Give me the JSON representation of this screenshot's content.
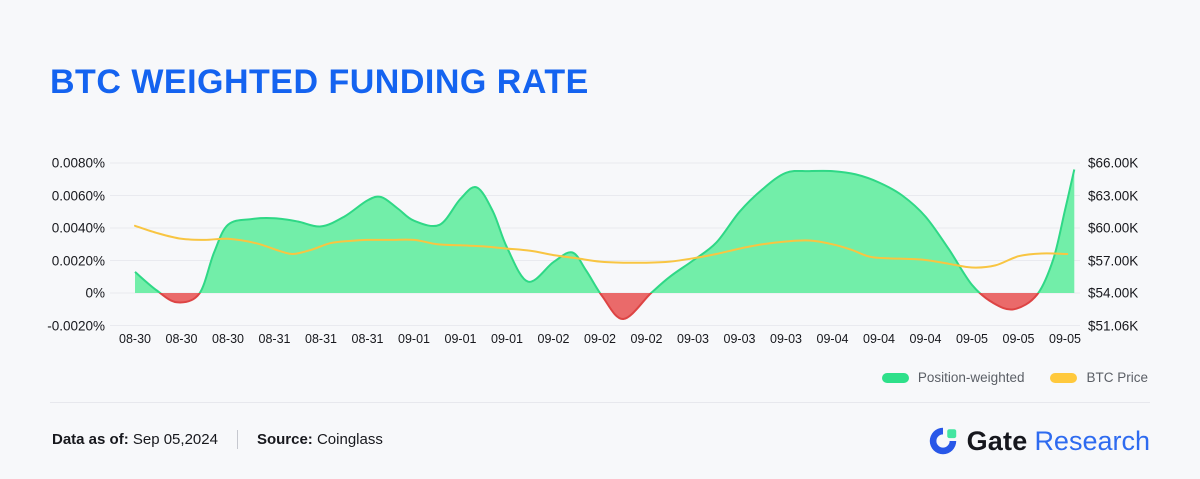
{
  "title": "BTC WEIGHTED FUNDING RATE",
  "colors": {
    "title_blue": "#1463f0",
    "background": "#f7f8fa",
    "grid": "#e9eaef",
    "area_positive_fill": "#72eea9",
    "area_positive_line": "#2fd886",
    "area_negative_fill": "#ea6a6a",
    "area_negative_line": "#dd4444",
    "price_line": "#f8c542"
  },
  "chart_data": {
    "type": "area",
    "title": "BTC WEIGHTED FUNDING RATE",
    "grid": true,
    "x_labels": [
      "08-30",
      "08-30",
      "08-30",
      "08-31",
      "08-31",
      "08-31",
      "09-01",
      "09-01",
      "09-01",
      "09-02",
      "09-02",
      "09-02",
      "09-03",
      "09-03",
      "09-03",
      "09-04",
      "09-04",
      "09-04",
      "09-05",
      "09-05",
      "09-05"
    ],
    "left_axis": {
      "ticks": [
        "0.0080%",
        "0.0060%",
        "0.0040%",
        "0.0020%",
        "0%",
        "-0.0020%"
      ],
      "values": [
        0.008,
        0.006,
        0.004,
        0.002,
        0,
        -0.002
      ],
      "unit": "%"
    },
    "right_axis": {
      "ticks": [
        "$66.00K",
        "$63.00K",
        "$60.00K",
        "$57.00K",
        "$54.00K",
        "$51.06K"
      ],
      "values": [
        66,
        63,
        60,
        57,
        54,
        51.06
      ],
      "unit": "$K"
    },
    "series": [
      {
        "name": "Position-weighted",
        "kind": "area",
        "axis": "left",
        "fill_positive": "#72eea9",
        "line_positive": "#2fd886",
        "fill_negative": "#ea6a6a",
        "line_negative": "#dd4444",
        "points": [
          [
            0,
            0.0013
          ],
          [
            0.45,
            0.0002
          ],
          [
            0.9,
            -0.00057
          ],
          [
            1.38,
            -5e-05
          ],
          [
            1.7,
            0.0025
          ],
          [
            2,
            0.0042
          ],
          [
            2.5,
            0.00455
          ],
          [
            3,
            0.0046
          ],
          [
            3.5,
            0.0044
          ],
          [
            4,
            0.0041
          ],
          [
            4.5,
            0.0047
          ],
          [
            5,
            0.0057
          ],
          [
            5.3,
            0.0059
          ],
          [
            5.65,
            0.0052
          ],
          [
            6,
            0.00445
          ],
          [
            6.55,
            0.0042
          ],
          [
            7,
            0.0058
          ],
          [
            7.35,
            0.0065
          ],
          [
            7.7,
            0.005
          ],
          [
            8,
            0.0028
          ],
          [
            8.45,
            0.0007
          ],
          [
            9,
            0.0019
          ],
          [
            9.4,
            0.0025
          ],
          [
            9.7,
            0.0014
          ],
          [
            10.05,
            -0.0002
          ],
          [
            10.5,
            -0.0016
          ],
          [
            11.1,
            0
          ],
          [
            11.5,
            0.001
          ],
          [
            12,
            0.002
          ],
          [
            12.5,
            0.0031
          ],
          [
            13,
            0.005
          ],
          [
            13.5,
            0.0064
          ],
          [
            14,
            0.0074
          ],
          [
            14.5,
            0.0075
          ],
          [
            15,
            0.0075
          ],
          [
            15.5,
            0.0073
          ],
          [
            16,
            0.0068
          ],
          [
            16.5,
            0.006
          ],
          [
            17,
            0.0047
          ],
          [
            17.5,
            0.0027
          ],
          [
            18,
            0.0005
          ],
          [
            18.45,
            -0.0006
          ],
          [
            18.9,
            -0.001
          ],
          [
            19.4,
            -0.0001
          ],
          [
            19.75,
            0.0021
          ],
          [
            20,
            0.0051
          ],
          [
            20.2,
            0.0076
          ]
        ]
      },
      {
        "name": "BTC Price",
        "kind": "line",
        "axis": "right",
        "color": "#f8c542",
        "points": [
          [
            0,
            60.2
          ],
          [
            0.5,
            59.5
          ],
          [
            1,
            59
          ],
          [
            1.5,
            58.9
          ],
          [
            2,
            59
          ],
          [
            2.6,
            58.6
          ],
          [
            3.1,
            57.9
          ],
          [
            3.4,
            57.6
          ],
          [
            3.8,
            58
          ],
          [
            4.2,
            58.6
          ],
          [
            4.6,
            58.8
          ],
          [
            5,
            58.9
          ],
          [
            5.5,
            58.9
          ],
          [
            6,
            58.9
          ],
          [
            6.5,
            58.5
          ],
          [
            7,
            58.4
          ],
          [
            7.5,
            58.3
          ],
          [
            8,
            58.1
          ],
          [
            8.5,
            57.9
          ],
          [
            9,
            57.5
          ],
          [
            9.5,
            57.2
          ],
          [
            10,
            56.9
          ],
          [
            10.5,
            56.8
          ],
          [
            11,
            56.8
          ],
          [
            11.5,
            56.9
          ],
          [
            12,
            57.2
          ],
          [
            12.5,
            57.6
          ],
          [
            13,
            58.1
          ],
          [
            13.5,
            58.5
          ],
          [
            14,
            58.75
          ],
          [
            14.5,
            58.85
          ],
          [
            15,
            58.5
          ],
          [
            15.4,
            58
          ],
          [
            15.8,
            57.35
          ],
          [
            16.2,
            57.2
          ],
          [
            16.6,
            57.15
          ],
          [
            17,
            57.05
          ],
          [
            17.5,
            56.7
          ],
          [
            18,
            56.35
          ],
          [
            18.5,
            56.55
          ],
          [
            19,
            57.4
          ],
          [
            19.5,
            57.65
          ],
          [
            20.05,
            57.6
          ]
        ]
      }
    ],
    "legend": [
      {
        "label": "Position-weighted",
        "color": "#2ee08a"
      },
      {
        "label": "BTC Price",
        "color": "#ffc93d"
      }
    ],
    "legend_position": "bottom-right"
  },
  "footer": {
    "data_as_of_label": "Data as of:",
    "data_as_of_value": "Sep 05,2024",
    "source_label": "Source:",
    "source_value": "Coinglass"
  },
  "logo": {
    "brand": "Gate",
    "suffix": "Research"
  }
}
